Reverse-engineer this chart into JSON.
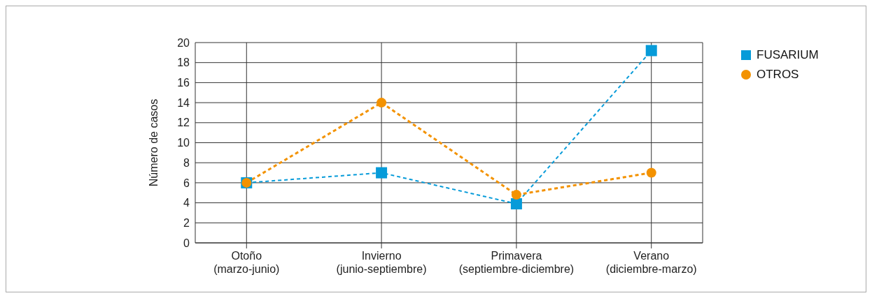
{
  "chart_data": {
    "type": "line",
    "ylabel": "Número de casos",
    "categories": [
      "Otoño\n(marzo-junio)",
      "Invierno\n(junio-septiembre)",
      "Primavera\n(septiembre-diciembre)",
      "Verano\n(diciembre-marzo)"
    ],
    "series": [
      {
        "name": "FUSARIUM",
        "color": "#069bd9",
        "marker": "square",
        "line_style": "dashed",
        "values": [
          6,
          7,
          3.9,
          19.2
        ]
      },
      {
        "name": "OTROS",
        "color": "#f39200",
        "marker": "circle",
        "line_style": "dashed",
        "values": [
          6,
          14,
          4.8,
          7
        ]
      }
    ],
    "ylim": [
      0,
      20
    ],
    "yticks": [
      0,
      2,
      4,
      6,
      8,
      10,
      12,
      14,
      16,
      18,
      20
    ],
    "grid": true,
    "legend": "top right"
  }
}
